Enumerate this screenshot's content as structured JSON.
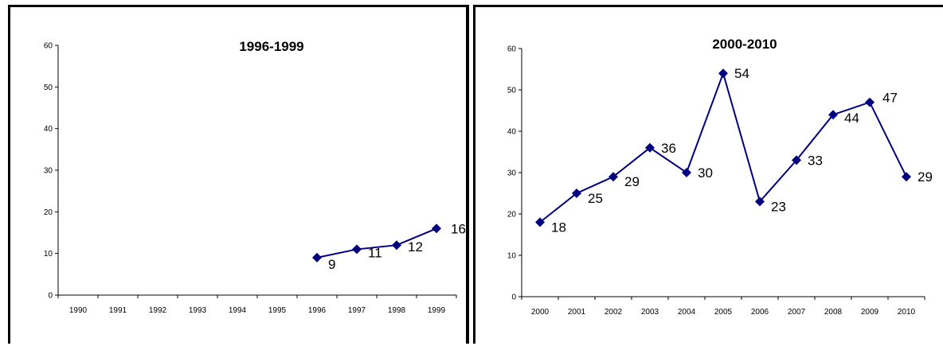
{
  "chart_data": [
    {
      "type": "line",
      "title": "1996-1999",
      "xlabel": "",
      "ylabel": "",
      "categories": [
        "1990",
        "1991",
        "1992",
        "1993",
        "1994",
        "1995",
        "1996",
        "1997",
        "1998",
        "1999"
      ],
      "series": [
        {
          "values": [
            null,
            null,
            null,
            null,
            null,
            null,
            9,
            11,
            12,
            16
          ]
        }
      ],
      "ylim": [
        0,
        60
      ],
      "yticks": [
        0,
        10,
        20,
        30,
        40,
        50,
        60
      ],
      "grid": false,
      "legend": "none",
      "marker": "diamond",
      "color": "#000080"
    },
    {
      "type": "line",
      "title": "2000-2010",
      "xlabel": "",
      "ylabel": "",
      "categories": [
        "2000",
        "2001",
        "2002",
        "2003",
        "2004",
        "2005",
        "2006",
        "2007",
        "2008",
        "2009",
        "2010"
      ],
      "series": [
        {
          "values": [
            18,
            25,
            29,
            36,
            30,
            54,
            23,
            33,
            44,
            47,
            29
          ]
        }
      ],
      "ylim": [
        0,
        60
      ],
      "yticks": [
        0,
        10,
        20,
        30,
        40,
        50,
        60
      ],
      "grid": false,
      "legend": "none",
      "marker": "diamond",
      "color": "#000080"
    }
  ]
}
